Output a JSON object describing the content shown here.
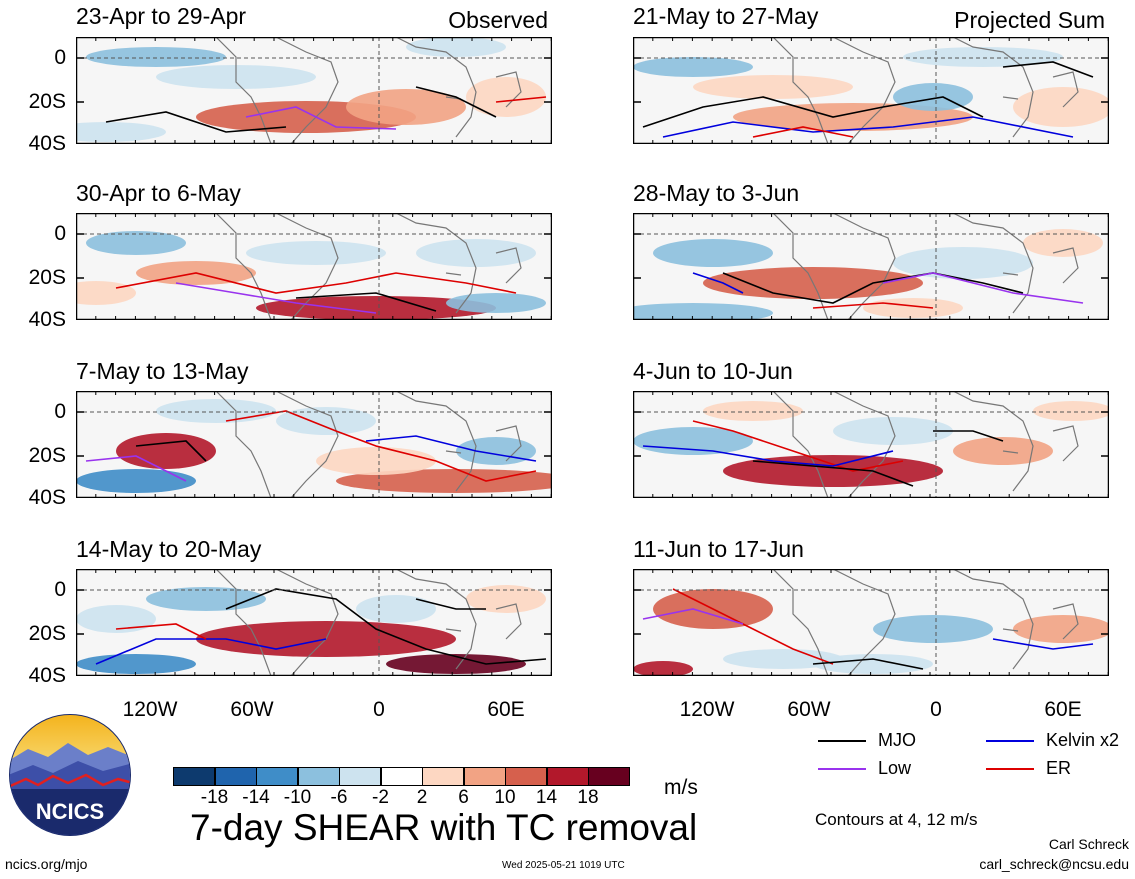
{
  "tags": {
    "observed": "Observed",
    "projected": "Projected Sum"
  },
  "panels": [
    {
      "title": "23-Apr to 29-Apr",
      "kind": "observed"
    },
    {
      "title": "30-Apr to 6-May",
      "kind": "observed"
    },
    {
      "title": "7-May to 13-May",
      "kind": "observed"
    },
    {
      "title": "14-May to 20-May",
      "kind": "observed"
    },
    {
      "title": "21-May to 27-May",
      "kind": "projected"
    },
    {
      "title": "28-May to 3-Jun",
      "kind": "projected"
    },
    {
      "title": "4-Jun to 10-Jun",
      "kind": "projected"
    },
    {
      "title": "11-Jun to 17-Jun",
      "kind": "projected"
    }
  ],
  "axes": {
    "lat_ticks": [
      "0",
      "20S",
      "40S"
    ],
    "lon_ticks": [
      "120W",
      "60W",
      "0",
      "60E"
    ]
  },
  "colorbar": {
    "unit": "m/s",
    "ticks": [
      "-18",
      "-14",
      "-10",
      "-6",
      "-2",
      "2",
      "6",
      "10",
      "14",
      "18"
    ],
    "colors": [
      "#0d3a6e",
      "#1f64ad",
      "#3f8dc8",
      "#8cc0de",
      "#cde3ef",
      "#ffffff",
      "#fdd7c2",
      "#f2a384",
      "#d6604d",
      "#b2182b",
      "#67001f"
    ]
  },
  "legend": {
    "items": [
      {
        "label": "MJO",
        "color": "#000000"
      },
      {
        "label": "Kelvin x2",
        "color": "#0000dd"
      },
      {
        "label": "Low",
        "color": "#9933ee"
      },
      {
        "label": "ER",
        "color": "#dd0000"
      }
    ],
    "contours_note": "Contours at 4, 12 m/s"
  },
  "main_title": "7-day SHEAR with TC removal",
  "logo_text": "NCICS",
  "footer": {
    "left": "ncics.org/mjo",
    "center": "Wed 2025-05-21 1019 UTC",
    "author": "Carl Schreck",
    "email": "carl_schreck@ncsu.edu"
  }
}
